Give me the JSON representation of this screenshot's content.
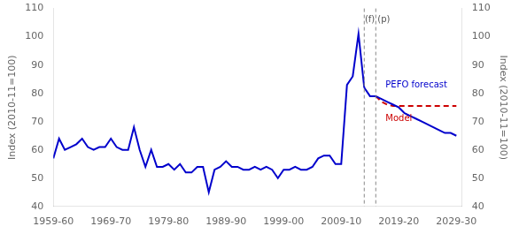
{
  "chart_data": {
    "type": "line",
    "ylabel": "Index (2010-11=100)",
    "y2label": "Index (2010-11=100)",
    "xlim": [
      1959.5,
      2030.5
    ],
    "xticks": [
      {
        "value": 1959.5,
        "label": "1959-60"
      },
      {
        "value": 1969.5,
        "label": "1969-70"
      },
      {
        "value": 1979.5,
        "label": "1979-80"
      },
      {
        "value": 1989.5,
        "label": "1989-90"
      },
      {
        "value": 1999.5,
        "label": "1999-00"
      },
      {
        "value": 2009.5,
        "label": "2009-10"
      },
      {
        "value": 2019.5,
        "label": "2019-20"
      },
      {
        "value": 2029.5,
        "label": "2029-30"
      }
    ],
    "ylim": [
      40,
      110
    ],
    "yticks": [
      40,
      50,
      60,
      70,
      80,
      90,
      100,
      110
    ],
    "y2lim": [
      40,
      110
    ],
    "y2ticks": [
      40,
      50,
      60,
      70,
      80,
      90,
      100,
      110
    ],
    "grid": false,
    "series": [
      {
        "color": "#0000CC",
        "line_style": "solid",
        "x": [
          1959.5,
          1960.5,
          1961.5,
          1962.5,
          1963.5,
          1964.5,
          1965.5,
          1966.5,
          1967.5,
          1968.5,
          1969.5,
          1970.5,
          1971.5,
          1972.5,
          1973.5,
          1974.5,
          1975.5,
          1976.5,
          1977.5,
          1978.5,
          1979.5,
          1980.5,
          1981.5,
          1982.5,
          1983.5,
          1984.5,
          1985.5,
          1986.5,
          1987.5,
          1988.5,
          1989.5,
          1990.5,
          1991.5,
          1992.5,
          1993.5,
          1994.5,
          1995.5,
          1996.5,
          1997.5,
          1998.5,
          1999.5,
          2000.5,
          2001.5,
          2002.5,
          2003.5,
          2004.5,
          2005.5,
          2006.5,
          2007.5,
          2008.5,
          2009.5,
          2010.5,
          2011.5,
          2012.5,
          2013.5
        ],
        "values": [
          57,
          64,
          60,
          61,
          62,
          64,
          61,
          60,
          61,
          61,
          64,
          61,
          60,
          60,
          68,
          60,
          54,
          60,
          54,
          54,
          55,
          53,
          55,
          52,
          52,
          54,
          54,
          45,
          53,
          54,
          56,
          54,
          54,
          53,
          53,
          54,
          53,
          54,
          53,
          50,
          53,
          53,
          54,
          53,
          53,
          54,
          57,
          58,
          58,
          55,
          55,
          83,
          86,
          101,
          82
        ]
      },
      {
        "color": "#0000CC",
        "line_style": "solid",
        "x": [
          2013.5,
          2014.5,
          2015.5,
          2016.5,
          2017.5,
          2018.5,
          2019.5,
          2020.5,
          2021.5,
          2022.5,
          2023.5,
          2024.5,
          2025.5,
          2026.5,
          2027.5,
          2028.5,
          2029.5
        ],
        "values": [
          82,
          79,
          79,
          78,
          77,
          76,
          75,
          73,
          72,
          71,
          70,
          69,
          68,
          67,
          66,
          66,
          65
        ]
      },
      {
        "color": "#CC0000",
        "line_style": "dashed",
        "x": [
          2015.5,
          2016.5,
          2017.5,
          2018.5,
          2019.5,
          2020.5,
          2021.5,
          2022.5,
          2023.5,
          2024.5,
          2025.5,
          2026.5,
          2027.5,
          2028.5,
          2029.5
        ],
        "values": [
          79,
          77,
          76,
          75.5,
          75.5,
          75.5,
          75.5,
          75.5,
          75.5,
          75.5,
          75.5,
          75.5,
          75.5,
          75.5,
          75.5
        ]
      }
    ],
    "vlines": [
      {
        "x": 2013.5,
        "color": "#888888",
        "line_style": "dashed"
      },
      {
        "x": 2015.5,
        "color": "#888888",
        "line_style": "dashed"
      }
    ],
    "annotations": [
      {
        "text": "(f)",
        "x": 2013.6,
        "y": 106,
        "color": "#555555"
      },
      {
        "text": "(p)",
        "x": 2015.8,
        "y": 106,
        "color": "#555555"
      },
      {
        "text": "PEFO forecast",
        "x": 2017.2,
        "y": 83,
        "color": "#0000CC"
      },
      {
        "text": "Model",
        "x": 2017.2,
        "y": 71,
        "color": "#CC0000"
      }
    ]
  }
}
